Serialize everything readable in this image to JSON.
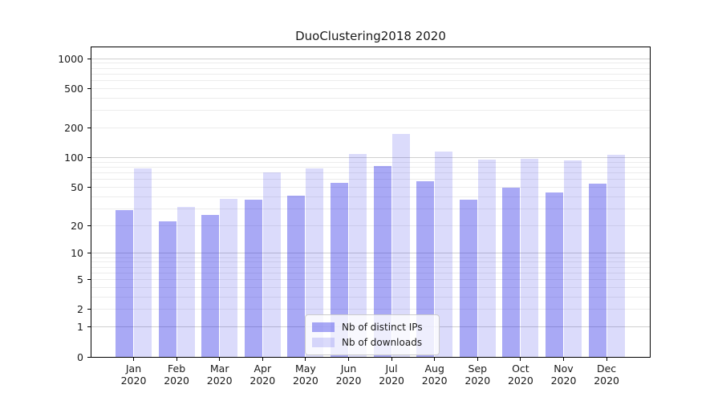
{
  "chart_data": {
    "type": "bar",
    "title": "DuoClustering2018 2020",
    "categories": [
      {
        "month": "Jan",
        "year": "2020"
      },
      {
        "month": "Feb",
        "year": "2020"
      },
      {
        "month": "Mar",
        "year": "2020"
      },
      {
        "month": "Apr",
        "year": "2020"
      },
      {
        "month": "May",
        "year": "2020"
      },
      {
        "month": "Jun",
        "year": "2020"
      },
      {
        "month": "Jul",
        "year": "2020"
      },
      {
        "month": "Aug",
        "year": "2020"
      },
      {
        "month": "Sep",
        "year": "2020"
      },
      {
        "month": "Oct",
        "year": "2020"
      },
      {
        "month": "Nov",
        "year": "2020"
      },
      {
        "month": "Dec",
        "year": "2020"
      }
    ],
    "series": [
      {
        "name": "Nb of distinct IPs",
        "color": "rgba(30,30,230,0.38)",
        "values": [
          29,
          22,
          26,
          37,
          41,
          55,
          83,
          57,
          37,
          49,
          44,
          54
        ]
      },
      {
        "name": "Nb of downloads",
        "color": "rgba(30,30,230,0.16)",
        "values": [
          78,
          31,
          38,
          71,
          77,
          110,
          175,
          116,
          96,
          98,
          93,
          106
        ]
      }
    ],
    "y_axis": {
      "scale": "log1p",
      "max": 1300,
      "ticks": [
        1000,
        500,
        200,
        100,
        50,
        20,
        10,
        5,
        2,
        1,
        0
      ],
      "grid_major": [
        1,
        10,
        100,
        1000
      ],
      "grid_minor": [
        2,
        3,
        4,
        5,
        6,
        7,
        8,
        9,
        20,
        30,
        40,
        50,
        60,
        70,
        80,
        90,
        200,
        300,
        400,
        500,
        600,
        700,
        800,
        900
      ]
    },
    "legend": {
      "position": "lower center"
    },
    "colors": {
      "background": "#ffffff",
      "spine": "#000000",
      "grid_major": "#d0d0d0",
      "grid_minor": "#ececec",
      "text": "#1a1a1a"
    }
  }
}
